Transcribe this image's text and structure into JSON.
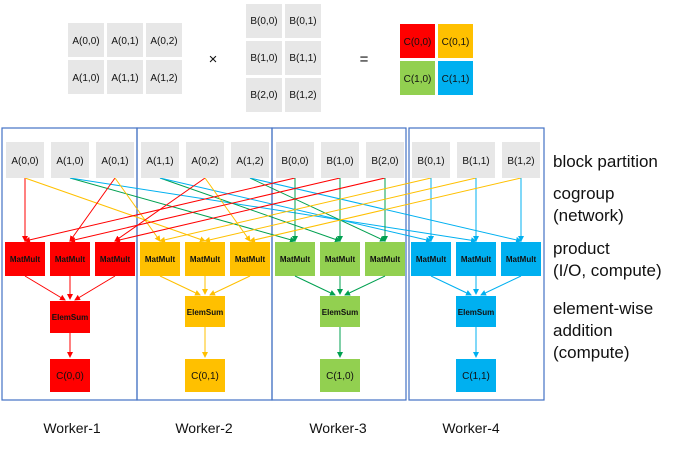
{
  "matrices": {
    "A": [
      "A(0,0)",
      "A(0,1)",
      "A(0,2)",
      "A(1,0)",
      "A(1,1)",
      "A(1,2)"
    ],
    "times": "×",
    "B": [
      "B(0,0)",
      "B(0,1)",
      "B(1,0)",
      "B(1,1)",
      "B(2,0)",
      "B(1,2)"
    ],
    "equals": "=",
    "C": [
      "C(0,0)",
      "C(0,1)",
      "C(1,0)",
      "C(1,1)"
    ]
  },
  "partition_blocks": [
    "A(0,0)",
    "A(1,0)",
    "A(0,1)",
    "A(1,1)",
    "A(0,2)",
    "A(1,2)",
    "B(0,0)",
    "B(1,0)",
    "B(2,0)",
    "B(0,1)",
    "B(1,1)",
    "B(1,2)"
  ],
  "workers": [
    {
      "label": "Worker-1",
      "matmul": "MatMult",
      "elemsum": "ElemSum",
      "result": "C(0,0)",
      "color": "#ff0000"
    },
    {
      "label": "Worker-2",
      "matmul": "MatMult",
      "elemsum": "ElemSum",
      "result": "C(0,1)",
      "color": "#ffc000"
    },
    {
      "label": "Worker-3",
      "matmul": "MatMult",
      "elemsum": "ElemSum",
      "result": "C(1,0)",
      "color": "#92d050"
    },
    {
      "label": "Worker-4",
      "matmul": "MatMult",
      "elemsum": "ElemSum",
      "result": "C(1,1)",
      "color": "#00b0f0"
    }
  ],
  "stages": {
    "block_partition": "block partition",
    "cogroup": [
      "cogroup",
      "(network)"
    ],
    "product": [
      "product",
      "(I/O, compute)"
    ],
    "elementwise": [
      "element-wise",
      "addition",
      "(compute)"
    ]
  },
  "colors": {
    "worker_border": "#4472c4",
    "cell_fill": "#e7e7e7",
    "c00": "#ff0000",
    "c01": "#ffc000",
    "c10": "#92d050",
    "c11": "#00b0f0"
  },
  "cogroup_edges": [
    {
      "from": 0,
      "to": 0,
      "color": "#ff0000"
    },
    {
      "from": 0,
      "to": 4,
      "color": "#ffc000"
    },
    {
      "from": 1,
      "to": 6,
      "color": "#92d050"
    },
    {
      "from": 1,
      "to": 10,
      "color": "#00b0f0"
    },
    {
      "from": 2,
      "to": 1,
      "color": "#ff0000"
    },
    {
      "from": 2,
      "to": 3,
      "color": "#ffc000"
    },
    {
      "from": 3,
      "to": 7,
      "color": "#92d050"
    },
    {
      "from": 3,
      "to": 9,
      "color": "#00b0f0"
    },
    {
      "from": 4,
      "to": 2,
      "color": "#ff0000"
    },
    {
      "from": 4,
      "to": 5,
      "color": "#ffc000"
    },
    {
      "from": 5,
      "to": 8,
      "color": "#92d050"
    },
    {
      "from": 5,
      "to": 11,
      "color": "#00b0f0"
    },
    {
      "from": 6,
      "to": 0,
      "color": "#ff0000"
    },
    {
      "from": 6,
      "to": 6,
      "color": "#92d050"
    },
    {
      "from": 7,
      "to": 1,
      "color": "#ff0000"
    },
    {
      "from": 7,
      "to": 7,
      "color": "#92d050"
    },
    {
      "from": 8,
      "to": 2,
      "color": "#ff0000"
    },
    {
      "from": 8,
      "to": 8,
      "color": "#92d050"
    },
    {
      "from": 9,
      "to": 3,
      "color": "#ffc000"
    },
    {
      "from": 9,
      "to": 9,
      "color": "#00b0f0"
    },
    {
      "from": 10,
      "to": 4,
      "color": "#ffc000"
    },
    {
      "from": 10,
      "to": 10,
      "color": "#00b0f0"
    },
    {
      "from": 11,
      "to": 5,
      "color": "#ffc000"
    },
    {
      "from": 11,
      "to": 11,
      "color": "#00b0f0"
    }
  ]
}
